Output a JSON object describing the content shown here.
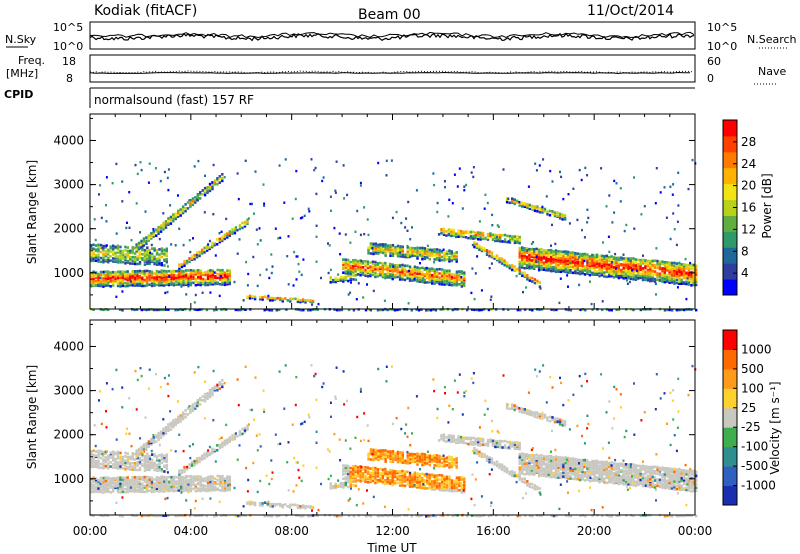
{
  "header": {
    "station": "Kodiak (fitACF)",
    "beam": "Beam 00",
    "date": "11/Oct/2014"
  },
  "top_panels": {
    "nsky_label": "N.Sky",
    "nsky_ticks": [
      "10^5",
      "10^0"
    ],
    "nsearch_label": "N.Search",
    "nsearch_ticks": [
      "10^5",
      "10^0"
    ],
    "freq_label": "Freq.",
    "freq_unit": "[MHz]",
    "freq_ticks": [
      "18",
      "8"
    ],
    "nave_label": "Nave",
    "nave_ticks": [
      "60",
      "0"
    ],
    "cpid_label": "CPID",
    "cpid_text": "normalsound (fast) 157 RF"
  },
  "chart_data": [
    {
      "type": "heatmap",
      "quantity": "Power",
      "ylabel": "Slant Range [km]",
      "ylim": [
        180,
        4600
      ],
      "yticks": [
        "1000",
        "2000",
        "3000",
        "4000"
      ],
      "xlim_hours": [
        0,
        24
      ],
      "xticks": [
        "00:00",
        "04:00",
        "08:00",
        "12:00",
        "16:00",
        "20:00",
        "00:00"
      ],
      "colorbar": {
        "label": "Power [dB]",
        "ticks": [
          "28",
          "24",
          "20",
          "16",
          "12",
          "8",
          "4"
        ],
        "colors": [
          "#0000ff",
          "#2e3e9e",
          "#20689a",
          "#2e9a6a",
          "#5fae3f",
          "#b8d21c",
          "#f2e312",
          "#ffb300",
          "#ff7a00",
          "#ff4000",
          "#ff0000"
        ]
      }
    },
    {
      "type": "heatmap",
      "quantity": "Velocity",
      "ylabel": "Slant Range [km]",
      "ylim": [
        180,
        4600
      ],
      "yticks": [
        "1000",
        "2000",
        "3000",
        "4000"
      ],
      "xlabel": "Time UT",
      "xlim_hours": [
        0,
        24
      ],
      "xticks": [
        "00:00",
        "04:00",
        "08:00",
        "12:00",
        "16:00",
        "20:00",
        "00:00"
      ],
      "colorbar": {
        "label": "Velocity [m s⁻¹]",
        "ticks": [
          "1000",
          "500",
          "100",
          "25",
          "-25",
          "-100",
          "-500",
          "-1000"
        ],
        "colors": [
          "#1a2fb0",
          "#2f5fbf",
          "#2f8f8f",
          "#3fae4f",
          "#c8c8c0",
          "#ffd12f",
          "#ff9a1a",
          "#ff6a00",
          "#ff0000"
        ]
      }
    }
  ]
}
